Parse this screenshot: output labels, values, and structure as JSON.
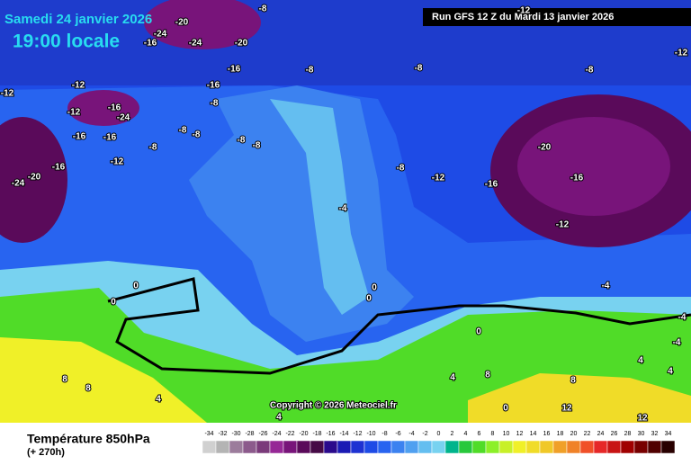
{
  "header": {
    "date": "Samedi 24 janvier 2026",
    "time": "19:00 locale",
    "run": "Run GFS 12 Z du Mardi 13 janvier 2026"
  },
  "map": {
    "contour_labels": [
      -8,
      -20,
      -24,
      -16,
      -24,
      -20,
      -16,
      -8,
      -8,
      -8,
      -12,
      -12,
      -12,
      -12,
      -16,
      -8,
      -12,
      -16,
      -24,
      -16,
      -16,
      -8,
      -8,
      -8,
      -8,
      -8,
      -12,
      -16,
      -20,
      -24,
      -20,
      -8,
      -12,
      -16,
      -16,
      -4,
      -12,
      0,
      0,
      0,
      0,
      -4,
      -4,
      -4,
      0,
      4,
      4,
      8,
      8,
      4,
      4,
      8,
      8,
      12,
      12,
      4,
      0
    ],
    "copyright": "Copyright © 2026 Meteociel.fr"
  },
  "legend": {
    "title": "Température 850hPa",
    "lead": "(+ 270h)",
    "ticks": [
      -34,
      -32,
      -30,
      -28,
      -26,
      -24,
      -22,
      -20,
      -18,
      -16,
      -14,
      -12,
      -10,
      -8,
      -6,
      -4,
      -2,
      0,
      2,
      4,
      6,
      8,
      10,
      12,
      14,
      16,
      18,
      20,
      22,
      24,
      26,
      28,
      30,
      32,
      34
    ],
    "colors": [
      "#d0d0d0",
      "#b4b4b4",
      "#9c7c9c",
      "#8c5a8c",
      "#7a3a7a",
      "#962896",
      "#78147a",
      "#5a0a5a",
      "#460a46",
      "#2a0a8c",
      "#1a1ab4",
      "#1e32d2",
      "#1e4be6",
      "#2864f0",
      "#3c82f0",
      "#50a0f0",
      "#64bef0",
      "#78d2f0",
      "#00b48c",
      "#28c83c",
      "#50dc28",
      "#8cf028",
      "#c8f028",
      "#f0f028",
      "#f0dc28",
      "#f0c828",
      "#f0a028",
      "#f08228",
      "#f05028",
      "#e62828",
      "#c81414",
      "#a00000",
      "#780000",
      "#500000",
      "#280000"
    ]
  }
}
